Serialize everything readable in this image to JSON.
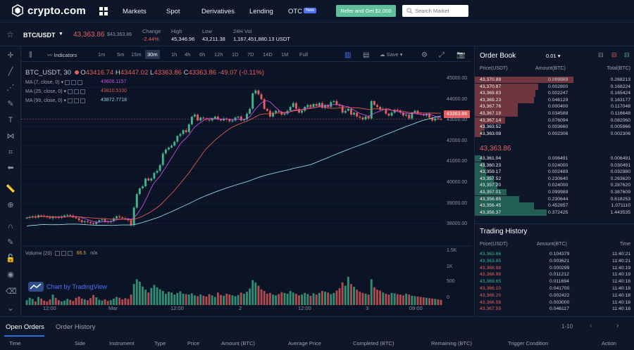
{
  "brand": {
    "name": "crypto.com"
  },
  "nav": {
    "links": [
      "Markets",
      "Spot",
      "Derivatives",
      "Lending",
      "OTC"
    ],
    "otc_badge": "New",
    "refer_button": "Refer and Get $2,000",
    "search_placeholder": "Search Market"
  },
  "ticker": {
    "pair": "BTC/USDT",
    "last": "43,363.86",
    "last_usd": "$43,363.86",
    "change_label": "Change",
    "change": "-2.44%",
    "high_label": "High",
    "high": "45,346.96",
    "low_label": "Low",
    "low": "43,211.38",
    "vol_label": "24H Vol",
    "vol": "1,167,451,880.13 USDT"
  },
  "chart_toolbar": {
    "indicators": "Indicators",
    "intervals": [
      "1m",
      "5m",
      "15m",
      "30m",
      "1h",
      "4h",
      "6h",
      "12h",
      "1D",
      "7D",
      "14D",
      "1M",
      "Full"
    ],
    "active_interval": "30m",
    "save": "Save"
  },
  "legend": {
    "symbol": "BTC_USDT, 30",
    "open_l": "O",
    "open": "43416.74",
    "high_l": "H",
    "high": "43447.02",
    "low_l": "L",
    "low": "43363.86",
    "close_l": "C",
    "close": "43363.86",
    "change": "-49.07 (-0.11%)",
    "ma": [
      {
        "label": "MA (7, close, 0)",
        "value": "43606.1157",
        "color": "#c64ee0"
      },
      {
        "label": "MA (25, close, 0)",
        "value": "43810.5100",
        "color": "#e0584e"
      },
      {
        "label": "MA (99, close, 0)",
        "value": "43872.7718",
        "color": "#8fd3dc"
      }
    ],
    "volume_label": "Volume (20)",
    "volume_value": "66.5",
    "volume_na": "n/a",
    "tradingview": "Chart by TradingView"
  },
  "chart_data": {
    "type": "candlestick",
    "y_ticks": [
      "45000.00",
      "44000.00",
      "43000.00",
      "42000.00",
      "41000.00",
      "40000.00",
      "39000.00",
      "38000.00"
    ],
    "vol_ticks": [
      "1.5K",
      "1K",
      "500",
      "0"
    ],
    "x_ticks": [
      "12:00",
      "Mar",
      "12:00",
      "2",
      "12:00",
      "3",
      "09:00"
    ],
    "price_tag": "43363.86",
    "ylim": [
      37400,
      45600
    ],
    "close": [
      38280,
      38320,
      38350,
      38300,
      38400,
      38380,
      38350,
      38300,
      38250,
      38320,
      38300,
      38280,
      38350,
      38400,
      38420,
      38380,
      38300,
      38250,
      38150,
      38050,
      38100,
      38050,
      38000,
      37950,
      38050,
      38150,
      38200,
      38100,
      38050,
      38100,
      38250,
      38350,
      38300,
      38250,
      38200,
      38150,
      37900,
      38800,
      39500,
      39800,
      39900,
      40300,
      40200,
      40300,
      40600,
      40700,
      41000,
      41600,
      41800,
      41900,
      42000,
      42200,
      42500,
      42600,
      42800,
      42700,
      43100,
      43500,
      43600,
      43300,
      43450,
      43400,
      43350,
      43300,
      43400,
      43500,
      43350,
      43300,
      43400,
      43350,
      43250,
      43300,
      43450,
      43500,
      43300,
      43350,
      43650,
      43900,
      44700,
      44850,
      44650,
      44400,
      43900,
      43800,
      43500,
      43700,
      43800,
      43750,
      43600,
      43650,
      43800,
      44000,
      44200,
      43900,
      43700,
      43800,
      44000,
      44100,
      44000,
      44150,
      44050,
      44200,
      43950,
      44100,
      44000,
      44250,
      44300,
      44100,
      44050,
      43700,
      43800,
      43900,
      43600,
      43700,
      43500,
      43450,
      43350,
      43500,
      43400,
      44300,
      44100,
      44000,
      43850,
      43900,
      43650,
      43550,
      43700,
      43850,
      43800,
      43700,
      43550,
      43600,
      43400,
      43700,
      43800,
      43650,
      43600,
      43550,
      43650,
      43450,
      43300,
      43400,
      43370,
      43364
    ],
    "volume": [
      120,
      180,
      150,
      90,
      200,
      160,
      110,
      90,
      140,
      260,
      180,
      120,
      90,
      110,
      150,
      130,
      100,
      180,
      210,
      160,
      140,
      120,
      170,
      250,
      190,
      130,
      110,
      140,
      100,
      120,
      160,
      200,
      180,
      140,
      170,
      150,
      260,
      520,
      640,
      580,
      460,
      380,
      310,
      420,
      500,
      440,
      390,
      350,
      280,
      330,
      310,
      260,
      300,
      340,
      280,
      270,
      260,
      290,
      240,
      220,
      260,
      230,
      210,
      270,
      240,
      200,
      310,
      250,
      230,
      280,
      260,
      240,
      220,
      250,
      310,
      280,
      330,
      410,
      620,
      560,
      480,
      390,
      350,
      280,
      300,
      260,
      240,
      270,
      320,
      300,
      280,
      350,
      310,
      280,
      240,
      260,
      300,
      270,
      230,
      290,
      260,
      300,
      350,
      330,
      310,
      270,
      300,
      360,
      420,
      560,
      480,
      700,
      520,
      450,
      380,
      330,
      300,
      280,
      260,
      640,
      440,
      380,
      360,
      310,
      280,
      260,
      300,
      290,
      270,
      260,
      240,
      280,
      260,
      230,
      220,
      210,
      200,
      190,
      180,
      170,
      160,
      150,
      140,
      130
    ]
  },
  "orderbook": {
    "title": "Order Book",
    "step": "0.01",
    "headers": [
      "Price(USDT)",
      "Amount(BTC)",
      "Total(BTC)"
    ],
    "asks": [
      [
        "43,370.89",
        "0.099989",
        "0.268213"
      ],
      [
        "43,370.87",
        "0.002800",
        "0.168224"
      ],
      [
        "43,369.83",
        "0.002247",
        "0.165424"
      ],
      [
        "43,369.23",
        "0.046129",
        "0.163177"
      ],
      [
        "43,367.76",
        "0.000400",
        "0.117048"
      ],
      [
        "43,367.19",
        "0.034588",
        "0.116648"
      ],
      [
        "43,367.14",
        "0.076094",
        "0.082060"
      ],
      [
        "43,363.52",
        "0.003660",
        "0.005966"
      ],
      [
        "43,363.08",
        "0.002306",
        "0.002306"
      ]
    ],
    "ask_depth": [
      0.62,
      0.4,
      0.38,
      0.37,
      0.27,
      0.27,
      0.19,
      0.06,
      0.04
    ],
    "mid": "43,363.86",
    "bids": [
      [
        "43,361.04",
        "0.006491",
        "0.006491"
      ],
      [
        "43,360.23",
        "0.024000",
        "0.030491"
      ],
      [
        "43,359.17",
        "0.002489",
        "0.032980"
      ],
      [
        "43,357.52",
        "0.230640",
        "0.263620"
      ],
      [
        "43,357.20",
        "0.024000",
        "0.287620"
      ],
      [
        "43,357.01",
        "0.099989",
        "0.387609"
      ],
      [
        "43,356.85",
        "0.230644",
        "0.618253"
      ],
      [
        "43,356.45",
        "0.452857",
        "1.071110"
      ],
      [
        "43,356.37",
        "0.372425",
        "1.443535"
      ]
    ],
    "bid_depth": [
      0.04,
      0.06,
      0.07,
      0.12,
      0.14,
      0.2,
      0.28,
      0.37,
      0.45
    ]
  },
  "history": {
    "title": "Trading History",
    "headers": [
      "Price(USDT)",
      "Amount(BTC)",
      "Time"
    ],
    "rows": [
      [
        "43,363.86",
        "0.104379",
        "11:40:21",
        "up"
      ],
      [
        "43,363.85",
        "0.003621",
        "11:40:21",
        "up"
      ],
      [
        "43,368.98",
        "0.000299",
        "11:40:19",
        "down"
      ],
      [
        "43,368.98",
        "0.011212",
        "11:40:19",
        "down"
      ],
      [
        "43,369.65",
        "0.011694",
        "11:40:18",
        "up"
      ],
      [
        "43,366.10",
        "0.041700",
        "11:40:18",
        "down"
      ],
      [
        "43,366.20",
        "0.002422",
        "11:40:18",
        "down"
      ],
      [
        "43,366.56",
        "0.003000",
        "11:40:18",
        "down"
      ],
      [
        "43,367.55",
        "0.046117",
        "11:40:18",
        "down"
      ]
    ]
  },
  "bottom": {
    "tabs": [
      "Open Orders",
      "Order History"
    ],
    "pager": "1-10",
    "columns": [
      "Time",
      "Side",
      "Instrument",
      "Type",
      "Price",
      "Amount (BTC)",
      "Average Price",
      "Completed (BTC)",
      "Remaining (BTC)",
      "Trigger Condition",
      "Action"
    ]
  },
  "colors": {
    "up": "#3fb68b",
    "down": "#e85e5e",
    "bg": "#0b1426",
    "panel": "#0d1729",
    "accent": "#2a6ce0"
  }
}
